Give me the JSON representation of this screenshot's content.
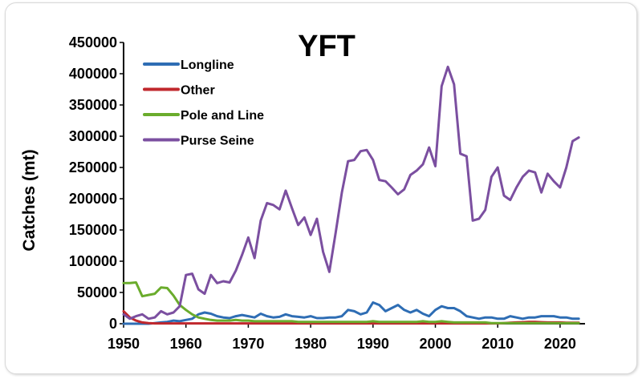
{
  "chart_data": {
    "type": "line",
    "title": "YFT",
    "xlabel": "",
    "ylabel": "Catches (mt)",
    "xlim": [
      1950,
      2024
    ],
    "ylim": [
      0,
      450000
    ],
    "x_ticks": [
      1950,
      1960,
      1970,
      1980,
      1990,
      2000,
      2010,
      2020
    ],
    "y_ticks": [
      0,
      50000,
      100000,
      150000,
      200000,
      250000,
      300000,
      350000,
      400000,
      450000
    ],
    "grid": false,
    "legend_position": "top-left",
    "x": [
      1950,
      1951,
      1952,
      1953,
      1954,
      1955,
      1956,
      1957,
      1958,
      1959,
      1960,
      1961,
      1962,
      1963,
      1964,
      1965,
      1966,
      1967,
      1968,
      1969,
      1970,
      1971,
      1972,
      1973,
      1974,
      1975,
      1976,
      1977,
      1978,
      1979,
      1980,
      1981,
      1982,
      1983,
      1984,
      1985,
      1986,
      1987,
      1988,
      1989,
      1990,
      1991,
      1992,
      1993,
      1994,
      1995,
      1996,
      1997,
      1998,
      1999,
      2000,
      2001,
      2002,
      2003,
      2004,
      2005,
      2006,
      2007,
      2008,
      2009,
      2010,
      2011,
      2012,
      2013,
      2014,
      2015,
      2016,
      2017,
      2018,
      2019,
      2020,
      2021,
      2022,
      2023
    ],
    "series": [
      {
        "name": "Longline",
        "color": "#2e6db4",
        "values": [
          0,
          0,
          0,
          0,
          0,
          1000,
          2000,
          3000,
          5000,
          4000,
          6000,
          8000,
          15000,
          18000,
          16000,
          12000,
          10000,
          9000,
          12000,
          14000,
          12000,
          10000,
          16000,
          12000,
          10000,
          11000,
          15000,
          12000,
          11000,
          10000,
          12000,
          9000,
          9000,
          10000,
          10000,
          12000,
          22000,
          20000,
          15000,
          18000,
          34000,
          30000,
          20000,
          25000,
          30000,
          22000,
          18000,
          22000,
          16000,
          12000,
          22000,
          28000,
          25000,
          25000,
          20000,
          12000,
          10000,
          8000,
          10000,
          10000,
          8000,
          8000,
          12000,
          10000,
          8000,
          10000,
          10000,
          12000,
          12000,
          12000,
          10000,
          10000,
          8000,
          8000
        ]
      },
      {
        "name": "Other",
        "color": "#c0282d",
        "values": [
          20000,
          10000,
          5000,
          2000,
          1000,
          500,
          500,
          500,
          500,
          500,
          500,
          500,
          500,
          500,
          500,
          500,
          500,
          500,
          500,
          500,
          500,
          500,
          500,
          500,
          500,
          500,
          500,
          500,
          500,
          500,
          500,
          500,
          500,
          500,
          500,
          500,
          500,
          500,
          500,
          500,
          500,
          500,
          500,
          500,
          500,
          500,
          500,
          500,
          500,
          500,
          500,
          500,
          500,
          500,
          500,
          500,
          500,
          500,
          500,
          500,
          500,
          1000,
          1500,
          2000,
          2500,
          3000,
          3000,
          2500,
          2000,
          2000,
          2000,
          1500,
          1500,
          1500
        ]
      },
      {
        "name": "Pole and Line",
        "color": "#6aac2c",
        "values": [
          65000,
          65000,
          66000,
          44000,
          46000,
          48000,
          58000,
          57000,
          45000,
          30000,
          22000,
          15000,
          10000,
          8000,
          6000,
          5000,
          5000,
          5000,
          6000,
          5000,
          5000,
          4000,
          4000,
          4000,
          4000,
          4000,
          4000,
          4000,
          3000,
          3000,
          3000,
          3000,
          3000,
          3000,
          3000,
          3000,
          3000,
          3000,
          3000,
          3000,
          4000,
          3000,
          3000,
          3000,
          3000,
          3000,
          3000,
          3000,
          4000,
          3000,
          3000,
          4000,
          3000,
          2000,
          2000,
          2000,
          2000,
          2000,
          2000,
          1000,
          1000,
          1000,
          1000,
          1000,
          1000,
          1000,
          1000,
          1000,
          1000,
          1000,
          1000,
          1000,
          1000,
          1000
        ]
      },
      {
        "name": "Purse Seine",
        "color": "#7b4fa0",
        "values": [
          15000,
          8000,
          12000,
          15000,
          8000,
          10000,
          20000,
          15000,
          18000,
          28000,
          78000,
          80000,
          55000,
          48000,
          78000,
          65000,
          68000,
          66000,
          85000,
          110000,
          138000,
          105000,
          165000,
          193000,
          190000,
          183000,
          213000,
          185000,
          158000,
          170000,
          142000,
          168000,
          115000,
          83000,
          145000,
          210000,
          260000,
          262000,
          276000,
          278000,
          262000,
          230000,
          228000,
          218000,
          207000,
          215000,
          238000,
          245000,
          255000,
          282000,
          252000,
          380000,
          411000,
          383000,
          272000,
          268000,
          165000,
          168000,
          182000,
          235000,
          250000,
          205000,
          198000,
          218000,
          235000,
          245000,
          242000,
          210000,
          240000,
          228000,
          218000,
          250000,
          292000,
          298000
        ]
      }
    ]
  }
}
